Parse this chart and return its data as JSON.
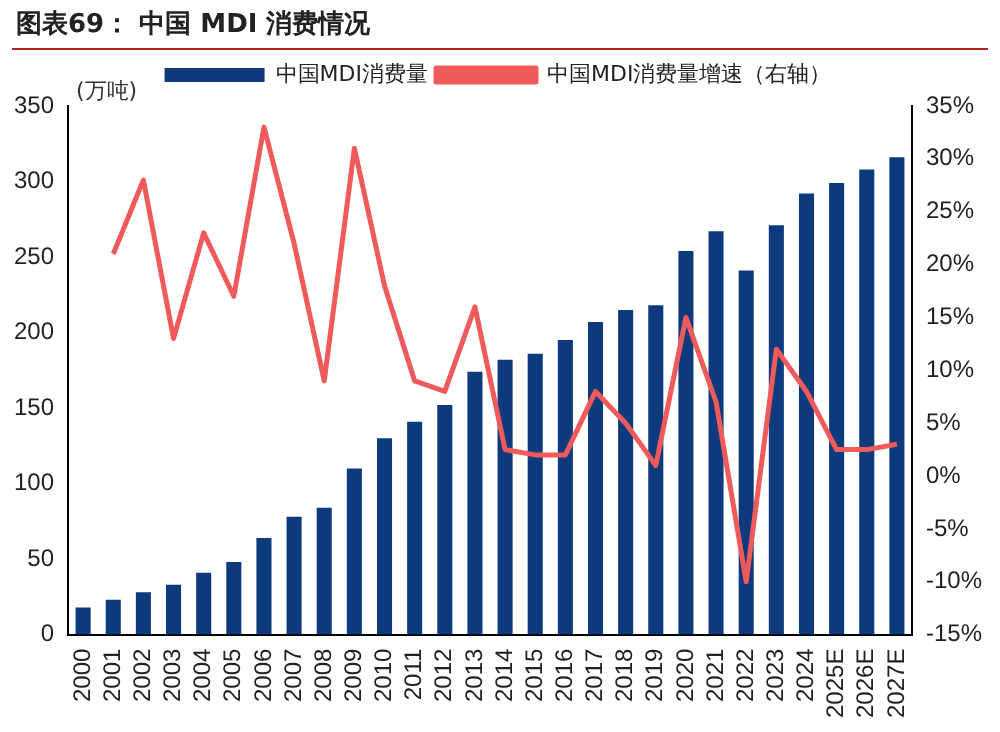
{
  "chart_data": {
    "type": "bar",
    "title": "图表69：  中国 MDI 消费情况",
    "ylabel": "(万吨)",
    "categories": [
      "2000",
      "2001",
      "2002",
      "2003",
      "2004",
      "2005",
      "2006",
      "2007",
      "2008",
      "2009",
      "2010",
      "2011",
      "2012",
      "2013",
      "2014",
      "2015",
      "2016",
      "2017",
      "2018",
      "2019",
      "2020",
      "2021",
      "2022",
      "2023",
      "2024",
      "2025E",
      "2026E",
      "2027E"
    ],
    "series": [
      {
        "name": "中国MDI消费量",
        "color": "#0c3a7d",
        "values": [
          18,
          23,
          28,
          33,
          41,
          48,
          64,
          78,
          84,
          110,
          130,
          141,
          152,
          174,
          182,
          186,
          195,
          207,
          215,
          218,
          254,
          267,
          241,
          271,
          292,
          299,
          308,
          316
        ]
      },
      {
        "name": "中国MDI消费量增速（右轴）",
        "type": "line",
        "axis": "y2",
        "color": "#f05a5a",
        "values": [
          null,
          21,
          28,
          13,
          23,
          17,
          33,
          22,
          9,
          31,
          18,
          9,
          8,
          16,
          2.5,
          2,
          2,
          8,
          5,
          1,
          15,
          7,
          -10,
          12,
          8,
          2.5,
          2.5,
          3
        ]
      }
    ],
    "ylim": [
      0,
      350
    ],
    "yticks": [
      0,
      50,
      100,
      150,
      200,
      250,
      300,
      350
    ],
    "y2lim": [
      -15,
      35
    ],
    "y2ticks": [
      {
        "value": -15,
        "label": "-15%"
      },
      {
        "value": -10,
        "label": "-10%"
      },
      {
        "value": -5,
        "label": "-5%"
      },
      {
        "value": 0,
        "label": "0%"
      },
      {
        "value": 5,
        "label": "5%"
      },
      {
        "value": 10,
        "label": "10%"
      },
      {
        "value": 15,
        "label": "15%"
      },
      {
        "value": 20,
        "label": "20%"
      },
      {
        "value": 25,
        "label": "25%"
      },
      {
        "value": 30,
        "label": "30%"
      },
      {
        "value": 35,
        "label": "35%"
      }
    ],
    "grid": false,
    "legend": "top",
    "marker": "none",
    "line_style": "solid"
  }
}
